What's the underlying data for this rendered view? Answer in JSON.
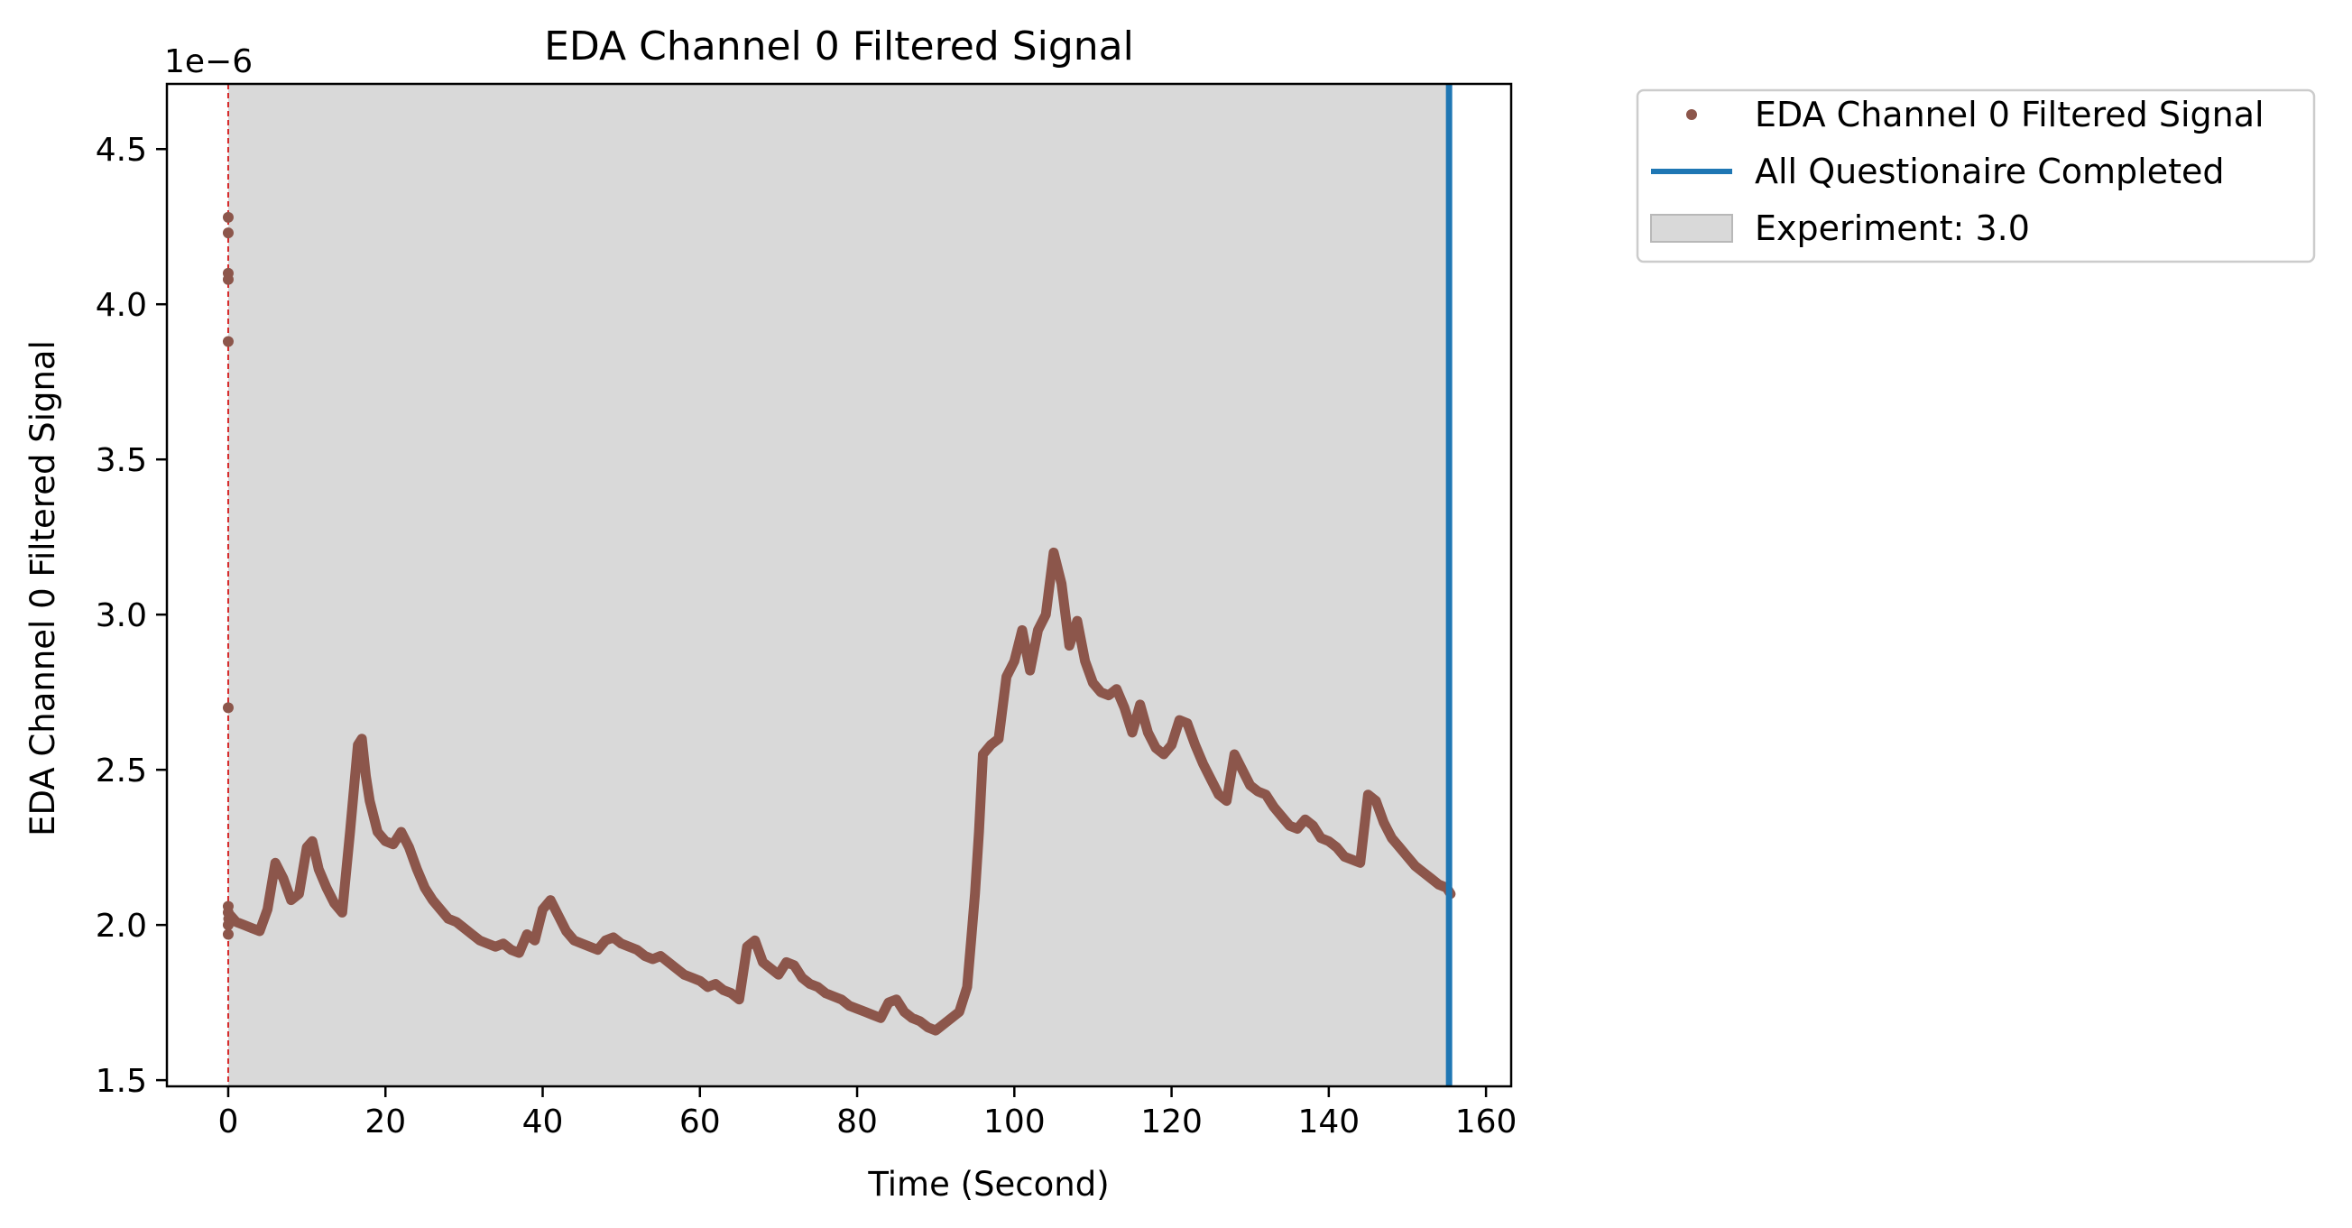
{
  "chart_data": {
    "type": "line",
    "title": "EDA Channel 0 Filtered Signal",
    "xlabel": "Time (Second)",
    "ylabel": "EDA Channel 0 Filtered Signal",
    "y_scale_label": "1e−6",
    "xlim": [
      -7.8,
      163.2
    ],
    "ylim": [
      1.48,
      4.71
    ],
    "x_ticks": [
      0,
      20,
      40,
      60,
      80,
      100,
      120,
      140,
      160
    ],
    "x_tick_labels": [
      "0",
      "20",
      "40",
      "60",
      "80",
      "100",
      "120",
      "140",
      "160"
    ],
    "y_ticks": [
      1.5,
      2.0,
      2.5,
      3.0,
      3.5,
      4.0,
      4.5
    ],
    "y_tick_labels": [
      "1.5",
      "2.0",
      "2.5",
      "3.0",
      "3.5",
      "4.0",
      "4.5"
    ],
    "grid": false,
    "legend_position": "outside-upper-right",
    "series": [
      {
        "name": "EDA Channel 0 Filtered Signal",
        "color": "#8c564b",
        "marker": "dot",
        "x": [
          0,
          0.3,
          1,
          2,
          3,
          4,
          5,
          6,
          7,
          8,
          9,
          10,
          10.7,
          11.5,
          12.5,
          13.5,
          14.5,
          15.5,
          16.5,
          17,
          17.5,
          18,
          19,
          20,
          21,
          22,
          23,
          24,
          25,
          26,
          27,
          28,
          29,
          30,
          31,
          32,
          33,
          34,
          35,
          36,
          37,
          38,
          39,
          40,
          41,
          42,
          43,
          44,
          45,
          46,
          47,
          48,
          49,
          50,
          51,
          52,
          53,
          54,
          55,
          56,
          57,
          58,
          59,
          60,
          61,
          62,
          63,
          64,
          65,
          66,
          67,
          68,
          69,
          70,
          71,
          72,
          73,
          74,
          75,
          76,
          77,
          78,
          79,
          80,
          81,
          82,
          83,
          84,
          85,
          86,
          87,
          88,
          89,
          90,
          91,
          92,
          93,
          94,
          94.5,
          95,
          95.5,
          96,
          97,
          98,
          99,
          100,
          101,
          102,
          103,
          104,
          105,
          106,
          107,
          108,
          109,
          110,
          111,
          112,
          113,
          114,
          115,
          116,
          117,
          118,
          119,
          120,
          121,
          122,
          123,
          124,
          125,
          126,
          127,
          128,
          129,
          130,
          131,
          132,
          133,
          134,
          135,
          136,
          137,
          138,
          139,
          140,
          141,
          142,
          143,
          144,
          145,
          146,
          147,
          148,
          149,
          150,
          151,
          152,
          153,
          154,
          155,
          155.5
        ],
        "y": [
          2.02,
          2.03,
          2.01,
          2.0,
          1.99,
          1.98,
          2.05,
          2.2,
          2.15,
          2.08,
          2.1,
          2.25,
          2.27,
          2.18,
          2.12,
          2.07,
          2.04,
          2.3,
          2.58,
          2.6,
          2.48,
          2.4,
          2.3,
          2.27,
          2.26,
          2.3,
          2.25,
          2.18,
          2.12,
          2.08,
          2.05,
          2.02,
          2.01,
          1.99,
          1.97,
          1.95,
          1.94,
          1.93,
          1.94,
          1.92,
          1.91,
          1.97,
          1.95,
          2.05,
          2.08,
          2.03,
          1.98,
          1.95,
          1.94,
          1.93,
          1.92,
          1.95,
          1.96,
          1.94,
          1.93,
          1.92,
          1.9,
          1.89,
          1.9,
          1.88,
          1.86,
          1.84,
          1.83,
          1.82,
          1.8,
          1.81,
          1.79,
          1.78,
          1.76,
          1.93,
          1.95,
          1.88,
          1.86,
          1.84,
          1.88,
          1.87,
          1.83,
          1.81,
          1.8,
          1.78,
          1.77,
          1.76,
          1.74,
          1.73,
          1.72,
          1.71,
          1.7,
          1.75,
          1.76,
          1.72,
          1.7,
          1.69,
          1.67,
          1.66,
          1.68,
          1.7,
          1.72,
          1.8,
          1.95,
          2.1,
          2.3,
          2.55,
          2.58,
          2.6,
          2.8,
          2.85,
          2.95,
          2.82,
          2.95,
          3.0,
          3.2,
          3.1,
          2.9,
          2.98,
          2.85,
          2.78,
          2.75,
          2.74,
          2.76,
          2.7,
          2.62,
          2.71,
          2.62,
          2.57,
          2.55,
          2.58,
          2.66,
          2.65,
          2.58,
          2.52,
          2.47,
          2.42,
          2.4,
          2.55,
          2.5,
          2.45,
          2.43,
          2.42,
          2.38,
          2.35,
          2.32,
          2.31,
          2.34,
          2.32,
          2.28,
          2.27,
          2.25,
          2.22,
          2.21,
          2.2,
          2.42,
          2.4,
          2.33,
          2.28,
          2.25,
          2.22,
          2.19,
          2.17,
          2.15,
          2.13,
          2.12,
          2.1
        ]
      },
      {
        "name": "All Questionaire Completed",
        "color": "#1f77b4",
        "type": "vertical-line",
        "x": 155.3
      },
      {
        "name": "Experiment: 3.0",
        "color": "#d9d9d9",
        "type": "shaded-span",
        "x_range": [
          0,
          155.3
        ]
      }
    ],
    "spike_points": {
      "x": 0,
      "y": [
        4.28,
        4.23,
        4.1,
        4.08,
        3.88,
        2.7,
        2.06,
        2.04,
        2.0,
        1.97
      ]
    },
    "start_marker": {
      "x": 0,
      "color": "#d62728",
      "style": "dashed"
    },
    "legend": [
      {
        "label": "EDA Channel 0 Filtered Signal",
        "kind": "marker",
        "color": "#8c564b"
      },
      {
        "label": "All Questionaire Completed",
        "kind": "line",
        "color": "#1f77b4"
      },
      {
        "label": "Experiment: 3.0",
        "kind": "patch",
        "color": "#d9d9d9"
      }
    ]
  }
}
